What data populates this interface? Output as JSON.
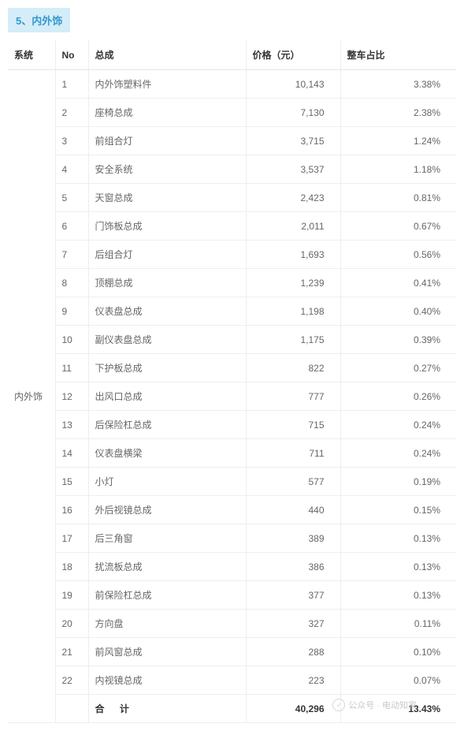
{
  "section": {
    "number": "5、",
    "title": "内外饰"
  },
  "table": {
    "headers": {
      "system": "系统",
      "no": "No",
      "name": "总成",
      "price": "价格（元）",
      "ratio": "整车占比"
    },
    "system_label": "内外饰",
    "rows": [
      {
        "no": "1",
        "name": "内外饰塑料件",
        "price": "10,143",
        "ratio": "3.38%"
      },
      {
        "no": "2",
        "name": "座椅总成",
        "price": "7,130",
        "ratio": "2.38%"
      },
      {
        "no": "3",
        "name": "前组合灯",
        "price": "3,715",
        "ratio": "1.24%"
      },
      {
        "no": "4",
        "name": "安全系统",
        "price": "3,537",
        "ratio": "1.18%"
      },
      {
        "no": "5",
        "name": "天窗总成",
        "price": "2,423",
        "ratio": "0.81%"
      },
      {
        "no": "6",
        "name": "门饰板总成",
        "price": "2,011",
        "ratio": "0.67%"
      },
      {
        "no": "7",
        "name": "后组合灯",
        "price": "1,693",
        "ratio": "0.56%"
      },
      {
        "no": "8",
        "name": "顶棚总成",
        "price": "1,239",
        "ratio": "0.41%"
      },
      {
        "no": "9",
        "name": "仪表盘总成",
        "price": "1,198",
        "ratio": "0.40%"
      },
      {
        "no": "10",
        "name": "副仪表盘总成",
        "price": "1,175",
        "ratio": "0.39%"
      },
      {
        "no": "11",
        "name": "下护板总成",
        "price": "822",
        "ratio": "0.27%"
      },
      {
        "no": "12",
        "name": "出风口总成",
        "price": "777",
        "ratio": "0.26%"
      },
      {
        "no": "13",
        "name": "后保险杠总成",
        "price": "715",
        "ratio": "0.24%"
      },
      {
        "no": "14",
        "name": "仪表盘横梁",
        "price": "711",
        "ratio": "0.24%"
      },
      {
        "no": "15",
        "name": "小灯",
        "price": "577",
        "ratio": "0.19%"
      },
      {
        "no": "16",
        "name": "外后视镜总成",
        "price": "440",
        "ratio": "0.15%"
      },
      {
        "no": "17",
        "name": "后三角窗",
        "price": "389",
        "ratio": "0.13%"
      },
      {
        "no": "18",
        "name": "扰流板总成",
        "price": "386",
        "ratio": "0.13%"
      },
      {
        "no": "19",
        "name": "前保险杠总成",
        "price": "377",
        "ratio": "0.13%"
      },
      {
        "no": "20",
        "name": "方向盘",
        "price": "327",
        "ratio": "0.11%"
      },
      {
        "no": "21",
        "name": "前风窗总成",
        "price": "288",
        "ratio": "0.10%"
      },
      {
        "no": "22",
        "name": "内视镜总成",
        "price": "223",
        "ratio": "0.07%"
      }
    ],
    "total": {
      "label": "合 计",
      "price": "40,296",
      "ratio": "13.43%"
    }
  },
  "watermark": {
    "text": "公众号 · 电动知家"
  },
  "colors": {
    "header_bg": "#d4edf9",
    "header_text": "#3399cc",
    "border": "#eeeeee",
    "text": "#666666",
    "header_row_text": "#333333"
  }
}
